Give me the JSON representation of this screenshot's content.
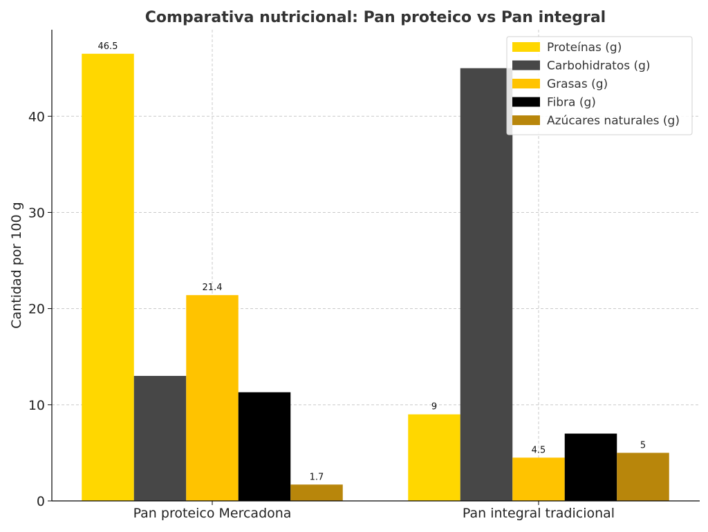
{
  "chart_data": {
    "type": "bar",
    "title": "Comparativa nutricional: Pan proteico vs Pan integral",
    "xlabel": "",
    "ylabel": "Cantidad por 100 g",
    "ylim": [
      0,
      49
    ],
    "yticks": [
      0,
      10,
      20,
      30,
      40
    ],
    "grid": true,
    "legend_position": "top-right",
    "categories": [
      "Pan proteico Mercadona",
      "Pan integral tradicional"
    ],
    "series": [
      {
        "name": "Proteínas (g)",
        "color": "#FFD700",
        "values": [
          46.5,
          9
        ],
        "labels": [
          "46.5",
          "9"
        ]
      },
      {
        "name": "Carbohidratos (g)",
        "color": "#474747",
        "values": [
          13,
          45
        ],
        "labels": [
          null,
          null
        ]
      },
      {
        "name": "Grasas (g)",
        "color": "#FFC300",
        "values": [
          21.4,
          4.5
        ],
        "labels": [
          "21.4",
          "4.5"
        ]
      },
      {
        "name": "Fibra (g)",
        "color": "#000000",
        "values": [
          11.3,
          7
        ],
        "labels": [
          null,
          null
        ]
      },
      {
        "name": "Azúcares naturales (g)",
        "color": "#B8860B",
        "values": [
          1.7,
          5
        ],
        "labels": [
          "1.7",
          "5"
        ]
      }
    ]
  }
}
